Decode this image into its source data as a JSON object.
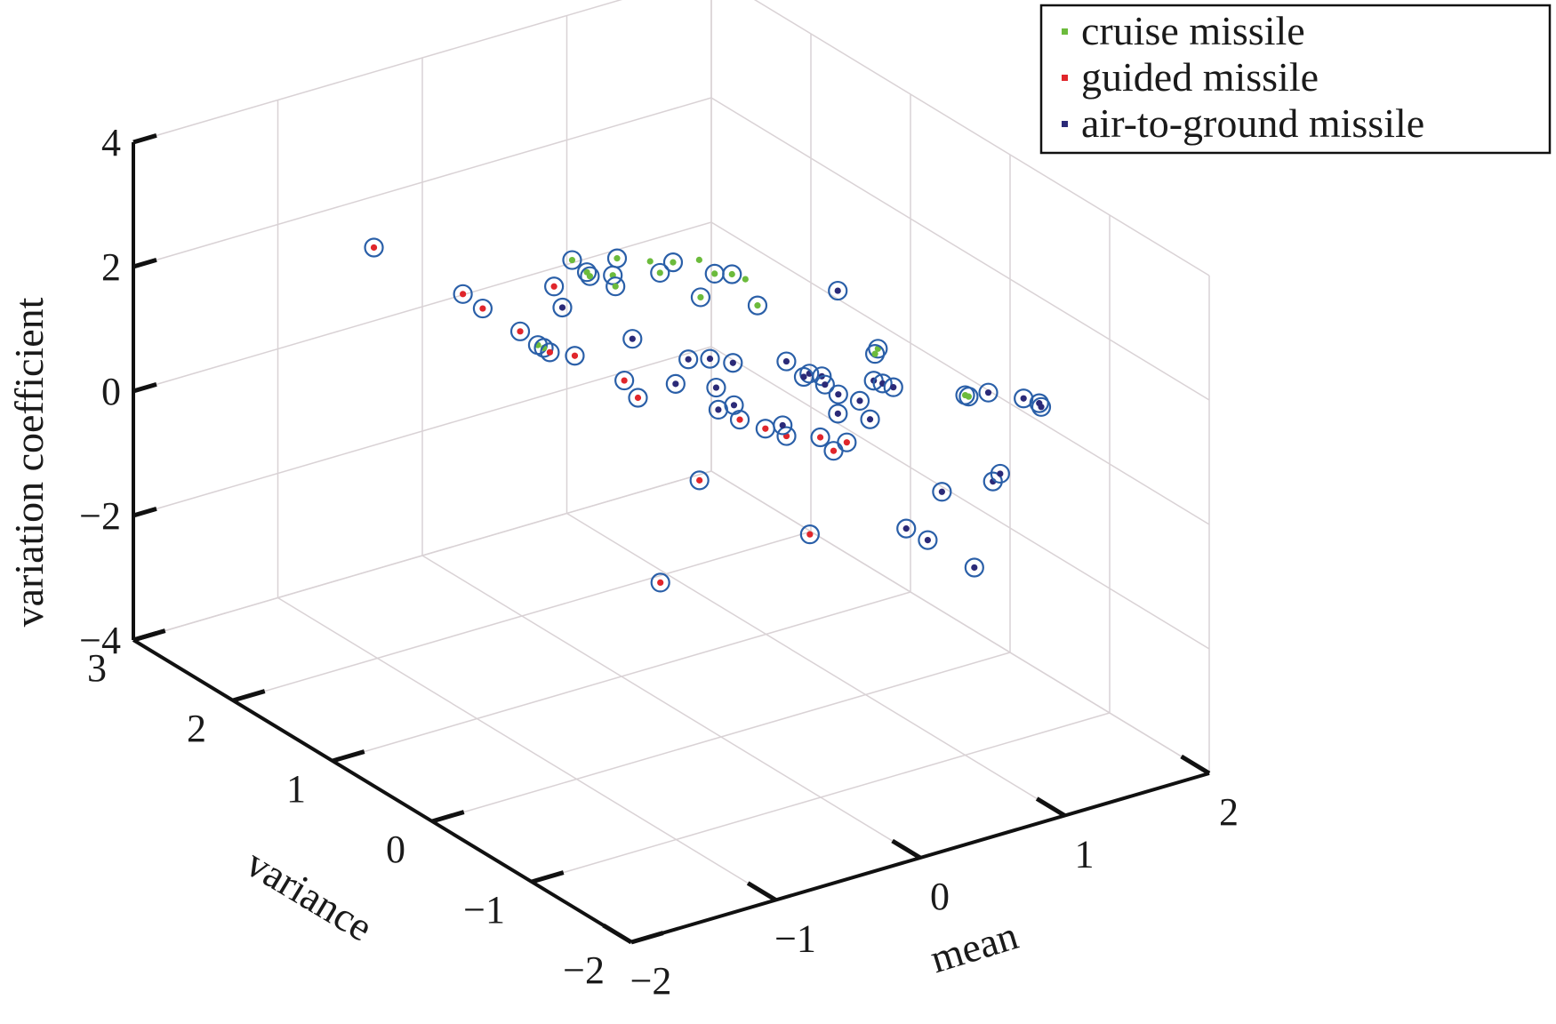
{
  "chart_data": {
    "type": "scatter",
    "projection": "3d",
    "xlabel": "mean",
    "ylabel": "variance",
    "zlabel": "variation coefficient",
    "xlim": [
      -2,
      2
    ],
    "ylim": [
      -2,
      3
    ],
    "zlim": [
      -4,
      4
    ],
    "x_ticks": [
      "−2",
      "−1",
      "0",
      "1",
      "2"
    ],
    "y_ticks": [
      "−2",
      "−1",
      "0",
      "1",
      "2",
      "3"
    ],
    "z_ticks": [
      "−4",
      "−2",
      "0",
      "2",
      "4"
    ],
    "grid": true,
    "legend_position": "top-right",
    "marker_ring_color": "#2a5fa8",
    "series": [
      {
        "name": "cruise missile",
        "color": "#6cbb3c",
        "points": [
          [
            -1.02,
            0.36,
            2.64
          ],
          [
            -1.0,
            0.33,
            2.61
          ],
          [
            -0.35,
            0.84,
            2.89
          ],
          [
            0.12,
            1.67,
            1.96
          ],
          [
            0.16,
            1.55,
            1.79
          ],
          [
            0.25,
            1.45,
            1.84
          ],
          [
            0.3,
            1.48,
            2.05
          ],
          [
            0.22,
            1.38,
            1.75
          ],
          [
            0.48,
            1.31,
            1.86
          ],
          [
            0.66,
            1.44,
            1.78
          ],
          [
            0.63,
            1.12,
            1.55
          ],
          [
            0.81,
            1.24,
            1.69
          ],
          [
            0.93,
            1.24,
            1.6
          ],
          [
            0.9,
            0.94,
            1.41
          ],
          [
            1.23,
            0.21,
            1.2
          ],
          [
            1.21,
            0.21,
            1.13
          ],
          [
            1.4,
            -0.42,
            0.95
          ],
          [
            1.41,
            -0.44,
            0.94
          ],
          [
            0.71,
            1.25,
            1.97
          ],
          [
            0.46,
            1.38,
            1.99
          ],
          [
            0.94,
            1.12,
            1.63
          ]
        ],
        "ringed": [
          true,
          true,
          true,
          true,
          true,
          true,
          true,
          true,
          true,
          true,
          true,
          true,
          true,
          true,
          true,
          true,
          true,
          true,
          false,
          false,
          false
        ]
      },
      {
        "name": "guided missile",
        "color": "#e0262b",
        "points": [
          [
            -0.48,
            2.79,
            1.48
          ],
          [
            -0.25,
            2.23,
            1.12
          ],
          [
            -0.23,
            2.06,
            1.04
          ],
          [
            -0.15,
            1.8,
            0.87
          ],
          [
            -0.11,
            1.56,
            0.74
          ],
          [
            -0.02,
            1.44,
            0.74
          ],
          [
            0.04,
            1.03,
            0.7
          ],
          [
            0.1,
            0.98,
            0.43
          ],
          [
            0.35,
            0.32,
            0.55
          ],
          [
            0.41,
            0.15,
            0.53
          ],
          [
            0.48,
            0.04,
            0.47
          ],
          [
            0.59,
            -0.14,
            0.55
          ],
          [
            0.67,
            -0.29,
            0.56
          ],
          [
            0.62,
            -0.23,
            0.4
          ],
          [
            0.25,
            0.58,
            -0.61
          ],
          [
            0.58,
            -0.05,
            -1.09
          ],
          [
            -0.46,
            1.01,
            2.57
          ],
          [
            0.2,
            0.9,
            -2.53
          ]
        ],
        "ringed": [
          true,
          true,
          true,
          true,
          true,
          true,
          true,
          true,
          true,
          true,
          true,
          true,
          true,
          true,
          true,
          true,
          true,
          true
        ]
      },
      {
        "name": "air-to-ground missile",
        "color": "#2b2a78",
        "points": [
          [
            -0.43,
            0.97,
            2.25
          ],
          [
            -0.2,
            0.6,
            1.95
          ],
          [
            -0.02,
            0.3,
            1.79
          ],
          [
            0.78,
            -0.04,
            2.68
          ],
          [
            0.44,
            0.75,
            1.05
          ],
          [
            0.53,
            0.65,
            1.02
          ],
          [
            0.79,
            0.26,
            1.05
          ],
          [
            0.7,
            0.36,
            1.21
          ],
          [
            0.71,
            0.2,
            1.11
          ],
          [
            0.78,
            0.12,
            1.15
          ],
          [
            0.96,
            -0.14,
            1.21
          ],
          [
            0.98,
            -0.2,
            1.21
          ],
          [
            1.02,
            -0.25,
            1.17
          ],
          [
            1.36,
            -0.71,
            1.3
          ],
          [
            1.48,
            -0.89,
            1.3
          ],
          [
            1.54,
            -0.96,
            1.25
          ],
          [
            1.54,
            -0.98,
            1.21
          ],
          [
            0.4,
            0.63,
            0.73
          ],
          [
            0.42,
            0.48,
            0.58
          ],
          [
            0.36,
            0.55,
            0.48
          ],
          [
            0.85,
            0.19,
            0.9
          ],
          [
            0.88,
            0.1,
            0.81
          ],
          [
            0.96,
            0.0,
            0.75
          ],
          [
            1.33,
            -0.8,
            -0.02
          ],
          [
            1.38,
            -0.8,
            0.07
          ],
          [
            1.17,
            -0.52,
            -0.35
          ],
          [
            0.96,
            0.22,
            0.33
          ],
          [
            1.1,
            0.1,
            0.26
          ],
          [
            0.34,
            0.95,
            0.52
          ],
          [
            0.55,
            0.18,
            0.46
          ],
          [
            1.12,
            -0.45,
            -1.16
          ],
          [
            0.73,
            -0.8,
            -0.37
          ],
          [
            1.16,
            -0.86,
            -1.23
          ]
        ],
        "ringed": [
          true,
          true,
          true,
          true,
          true,
          true,
          true,
          true,
          true,
          true,
          true,
          true,
          true,
          true,
          true,
          true,
          true,
          true,
          true,
          true,
          true,
          true,
          true,
          true,
          true,
          true,
          true,
          true,
          true,
          true,
          true,
          true,
          true
        ]
      }
    ]
  }
}
